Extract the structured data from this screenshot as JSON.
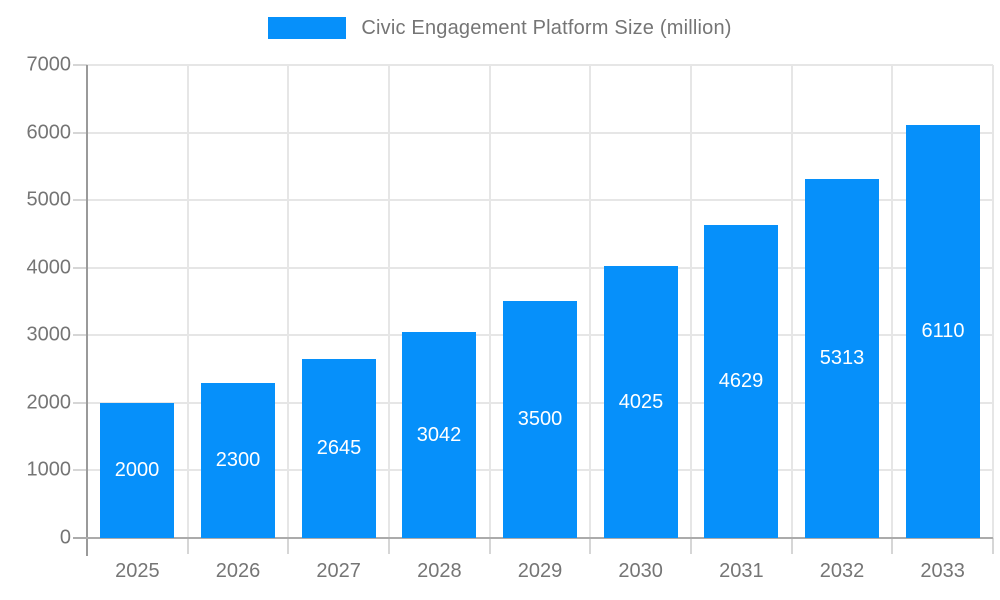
{
  "legend": {
    "label": "Civic Engagement Platform Size (million)"
  },
  "colors": {
    "bar": "#0690fa",
    "grid": "#e6e6e6",
    "axis": "#9a9a9a",
    "text": "#757575",
    "bar_label": "#ffffff"
  },
  "chart_data": {
    "type": "bar",
    "title": "Civic Engagement Platform Size (million)",
    "categories": [
      "2025",
      "2026",
      "2027",
      "2028",
      "2029",
      "2030",
      "2031",
      "2032",
      "2033"
    ],
    "values": [
      2000,
      2300,
      2645,
      3042,
      3500,
      4025,
      4629,
      5313,
      6110
    ],
    "series_name": "Civic Engagement Platform Size (million)",
    "xlabel": "",
    "ylabel": "",
    "ylim": [
      0,
      7000
    ],
    "ytick_step": 1000,
    "yticks": [
      0,
      1000,
      2000,
      3000,
      4000,
      5000,
      6000,
      7000
    ],
    "grid": true,
    "legend_position": "top",
    "value_labels": "inside-center"
  }
}
